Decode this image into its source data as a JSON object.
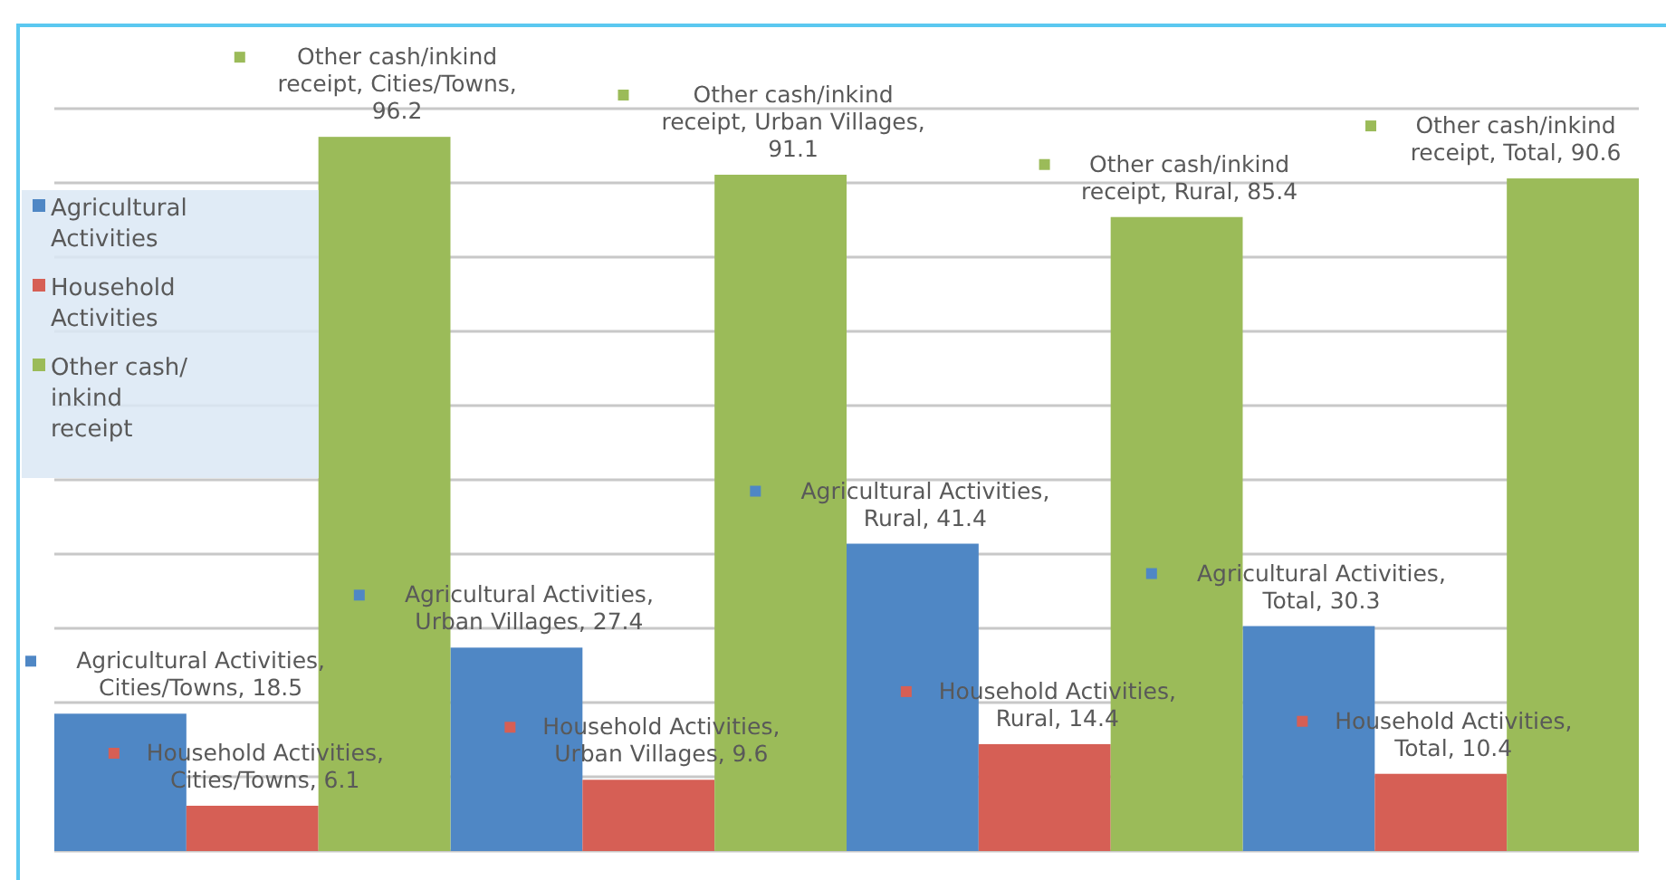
{
  "chart_data": {
    "type": "bar",
    "categories": [
      null,
      null,
      null,
      null
    ],
    "series": [
      {
        "name": "Agricultural Activities",
        "color": "#4f87c5",
        "values": [
          18.5,
          27.4,
          41.4,
          30.3
        ],
        "value_labels": [
          "Agricultural Activities, Cities/Towns, 18.5",
          "Agricultural Activities, Urban Villages, 27.4",
          "Agricultural Activities, Rural, 41.4",
          "Agricultural Activities, Total, 30.3"
        ]
      },
      {
        "name": "Household Activities",
        "color": "#d65f55",
        "values": [
          6.1,
          9.6,
          14.4,
          10.4
        ],
        "value_labels": [
          "Household Activities, Cities/Towns, 6.1",
          "Household Activities, Urban Villages, 9.6",
          "Household Activities, Rural, 14.4",
          "Household Activities, Total, 10.4"
        ]
      },
      {
        "name": "Other cash/ inkind receipt",
        "color": "#9bbb59",
        "values": [
          96.2,
          91.1,
          85.4,
          90.6
        ],
        "value_labels": [
          "Other cash/inkind receipt, Cities/Towns, 96.2",
          "Other cash/inkind receipt, Urban Villages, 91.1",
          "Other cash/inkind receipt, Rural, 85.4",
          "Other cash/inkind receipt, Total, 90.6"
        ]
      }
    ],
    "ylim": [
      0,
      100
    ],
    "yticks": [
      {
        "value": 0,
        "label": null
      },
      {
        "value": 10,
        "label": null
      },
      {
        "value": 20,
        "label": null
      },
      {
        "value": 30,
        "label": null
      },
      {
        "value": 40,
        "label": null
      },
      {
        "value": 50,
        "label": null
      },
      {
        "value": 60,
        "label": null
      },
      {
        "value": 70,
        "label": null
      },
      {
        "value": 80,
        "label": null
      },
      {
        "value": 90,
        "label": null
      },
      {
        "value": 100,
        "label": null
      }
    ],
    "grid": "y",
    "legend": "left"
  }
}
